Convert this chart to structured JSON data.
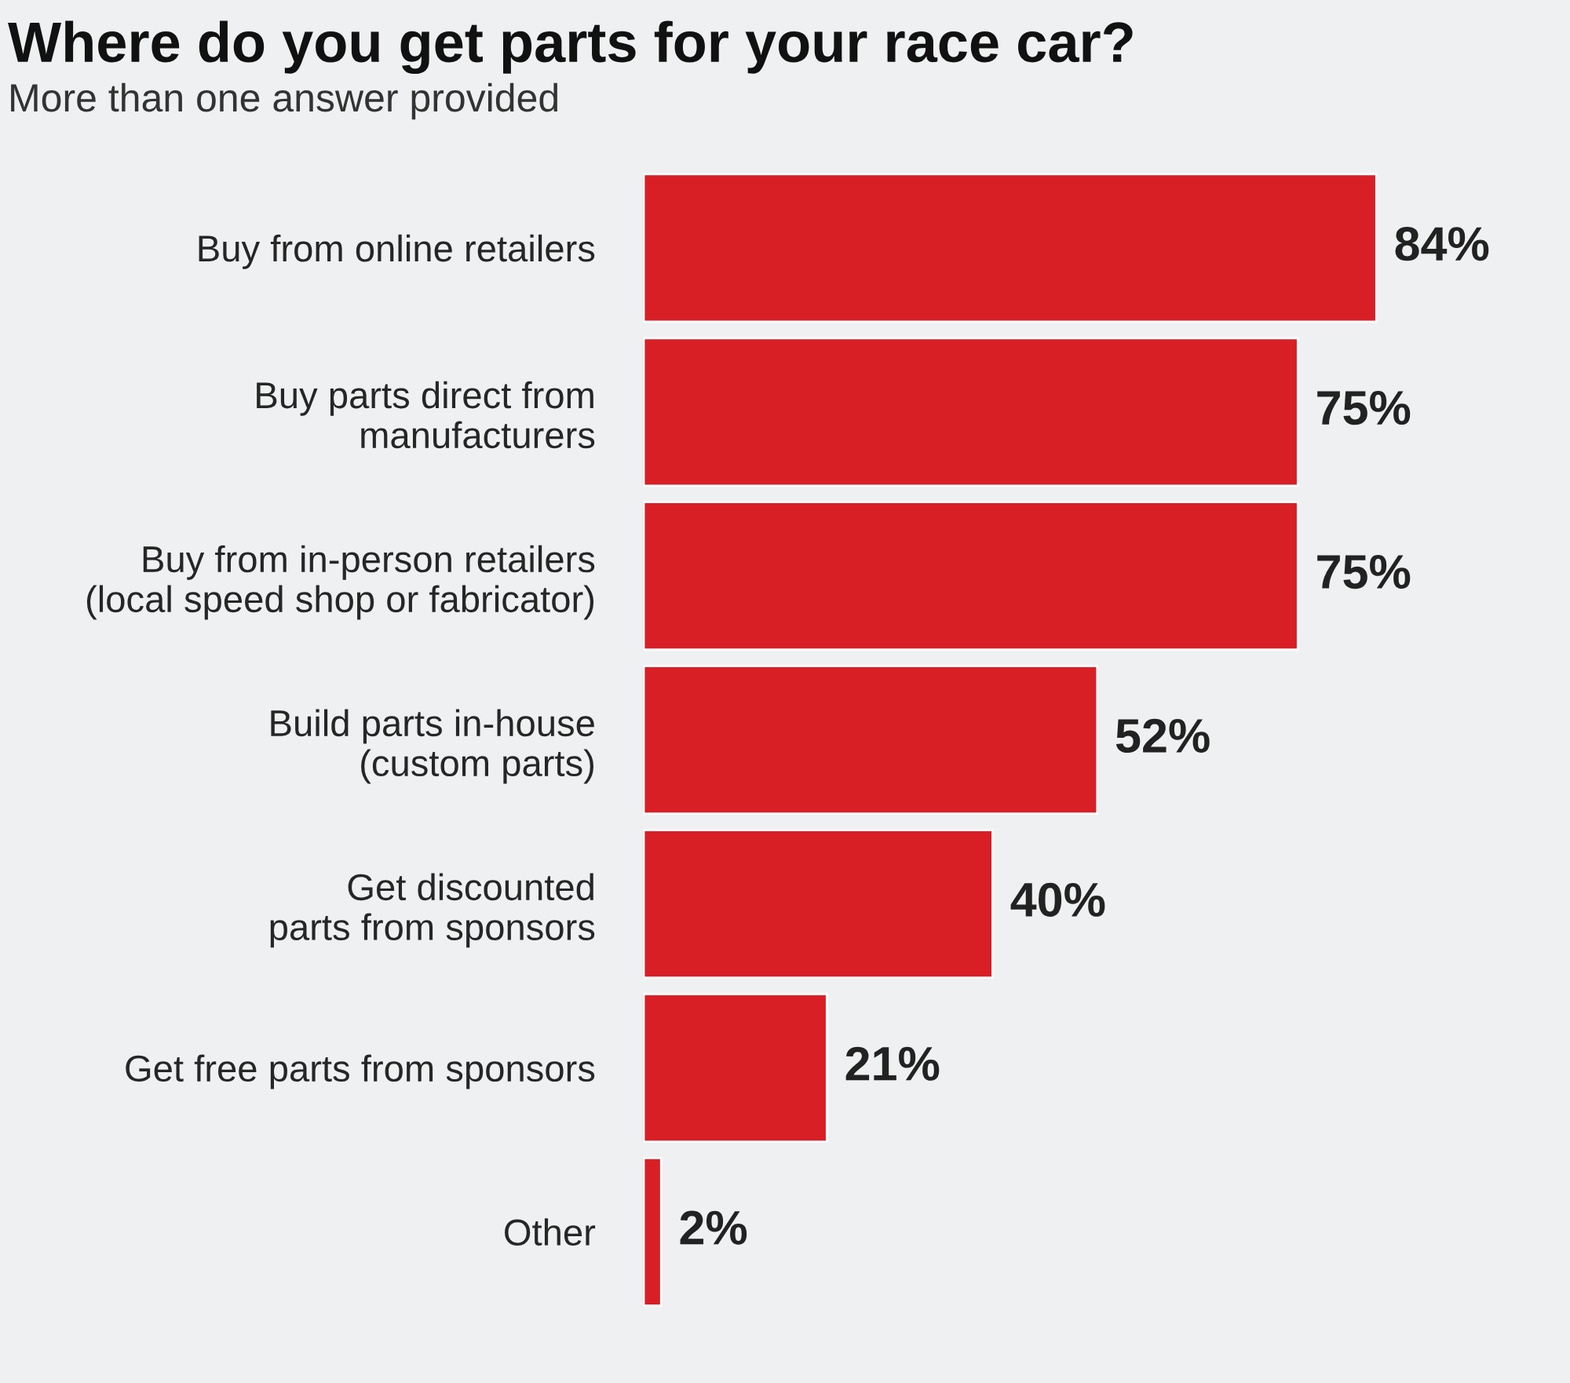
{
  "chart_data": {
    "type": "bar",
    "orientation": "horizontal",
    "title": "Where do you get parts for your race car?",
    "subtitle": "More than one answer provided",
    "categories": [
      "Buy from online retailers",
      "Buy parts direct from\nmanufacturers",
      "Buy from in-person retailers\n(local speed shop or fabricator)",
      "Build parts in-house\n(custom parts)",
      "Get discounted\nparts from sponsors",
      "Get free parts from sponsors",
      "Other"
    ],
    "values": [
      84,
      75,
      75,
      52,
      40,
      21,
      2
    ],
    "value_labels": [
      "84%",
      "75%",
      "75%",
      "52%",
      "40%",
      "21%",
      "2%"
    ],
    "color": "#d81f26",
    "tick_labels": "y",
    "grid": false,
    "legend": false
  }
}
